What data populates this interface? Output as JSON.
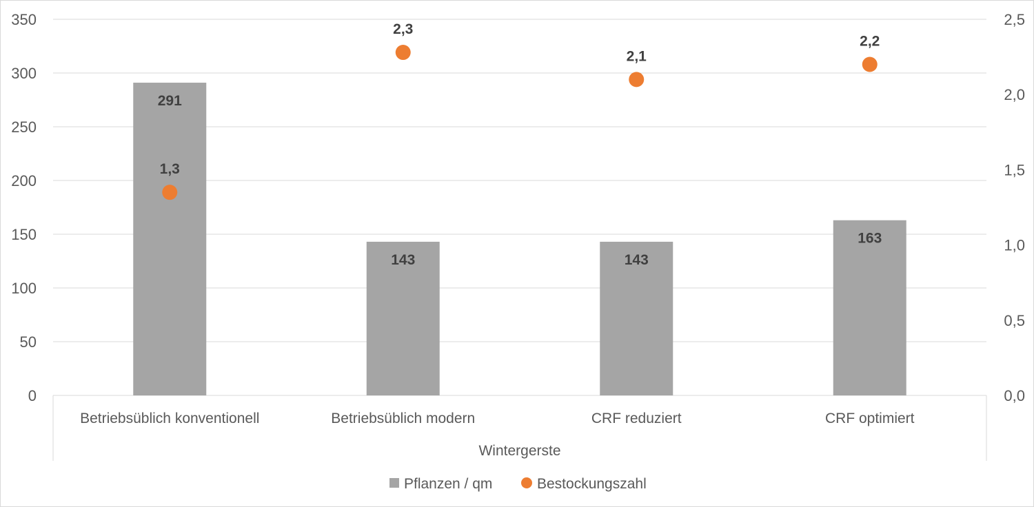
{
  "chart_data": {
    "type": "bar",
    "title": "",
    "categories": [
      "Betriebsüblich konventionell",
      "Betriebsüblich modern",
      "CRF reduziert",
      "CRF optimiert"
    ],
    "group_label": "Wintergerste",
    "series": [
      {
        "name": "Pflanzen / qm",
        "type": "bar",
        "axis": "left",
        "color": "#a5a5a5",
        "values": [
          291,
          143,
          143,
          163
        ],
        "labels": [
          "291",
          "143",
          "143",
          "163"
        ]
      },
      {
        "name": "Bestockungszahl",
        "type": "scatter",
        "axis": "right",
        "color": "#ed7d31",
        "values": [
          1.35,
          2.28,
          2.1,
          2.2
        ],
        "labels": [
          "1,3",
          "2,3",
          "2,1",
          "2,2"
        ]
      }
    ],
    "y_left": {
      "min": 0,
      "max": 350,
      "ticks": [
        "0",
        "50",
        "100",
        "150",
        "200",
        "250",
        "300",
        "350"
      ]
    },
    "y_right": {
      "min": 0,
      "max": 2.5,
      "ticks": [
        "0,0",
        "0,5",
        "1,0",
        "1,5",
        "2,0",
        "2,5"
      ]
    },
    "grid": true,
    "legend_position": "bottom",
    "colors": {
      "gridline": "#d9d9d9",
      "axis_text": "#595959",
      "label_text": "#404040"
    }
  }
}
